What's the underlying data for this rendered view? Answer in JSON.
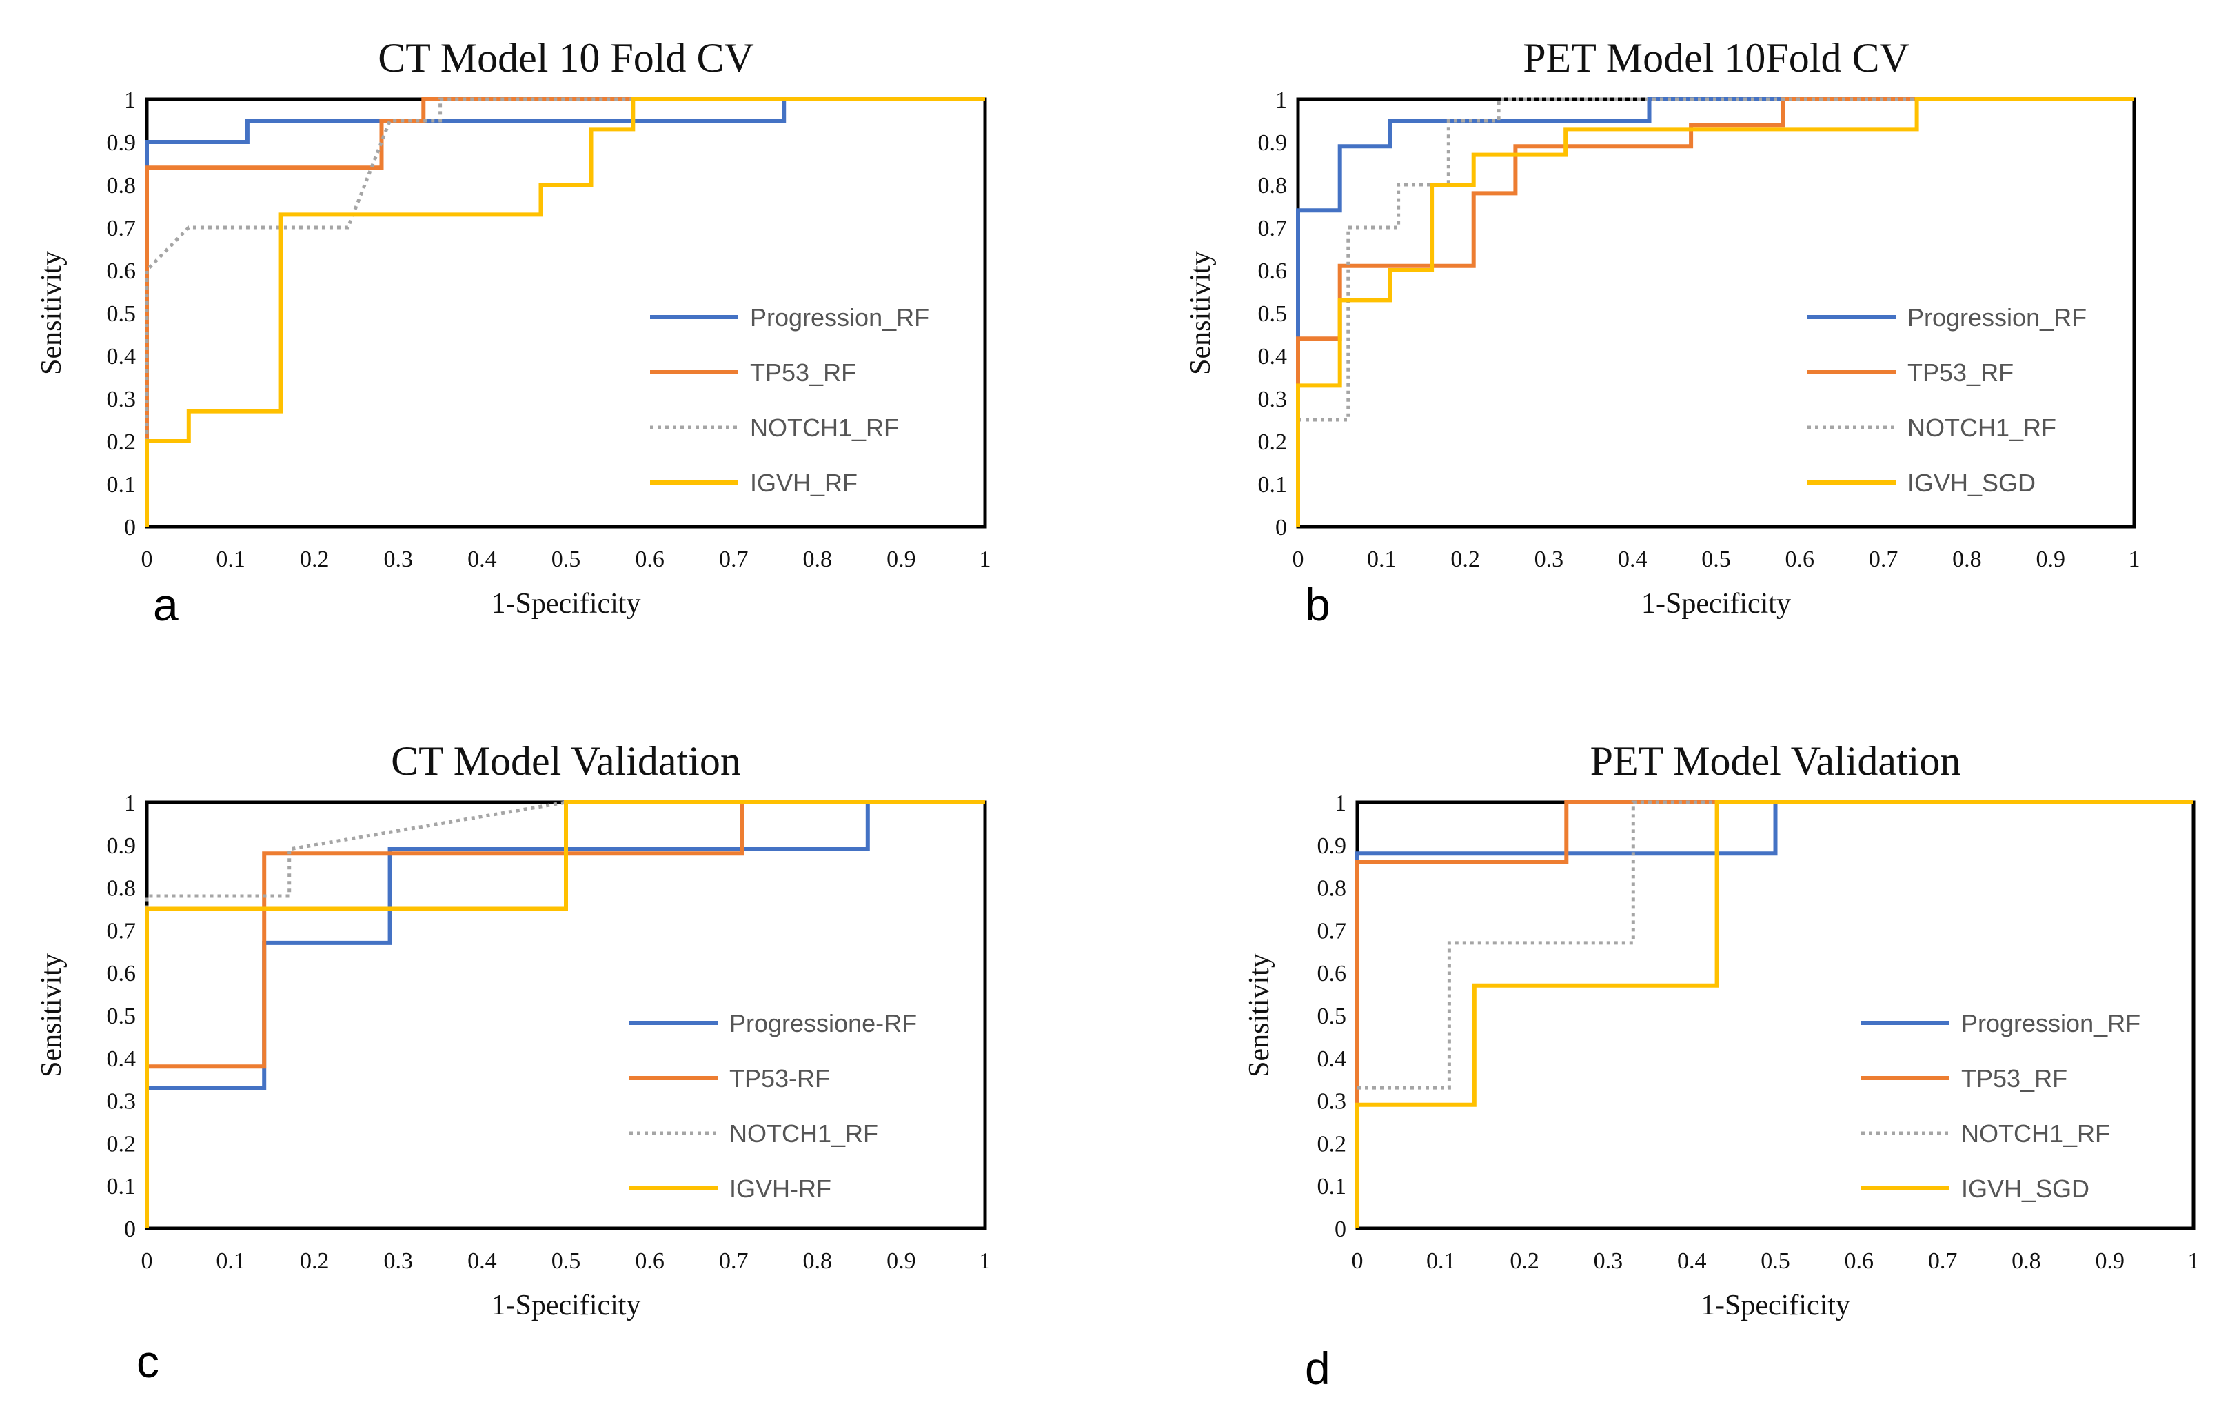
{
  "chart_data": [
    {
      "panel_label": "a",
      "type": "line",
      "title": "CT Model 10 Fold CV",
      "xlabel": "1-Specificity",
      "ylabel": "Sensitivity",
      "xlim": [
        0,
        1
      ],
      "ylim": [
        0,
        1
      ],
      "xticks": [
        "0",
        "0.1",
        "0.2",
        "0.3",
        "0.4",
        "0.5",
        "0.6",
        "0.7",
        "0.8",
        "0.9",
        "1"
      ],
      "yticks": [
        "0",
        "0.1",
        "0.2",
        "0.3",
        "0.4",
        "0.5",
        "0.6",
        "0.7",
        "0.8",
        "0.9",
        "1"
      ],
      "grid": false,
      "legend": "right",
      "series": [
        {
          "name": "Progression_RF",
          "color": "#4472C4",
          "style": "solid",
          "points": [
            [
              0,
              0.84
            ],
            [
              0,
              0.9
            ],
            [
              0.12,
              0.9
            ],
            [
              0.12,
              0.95
            ],
            [
              0.76,
              0.95
            ],
            [
              0.76,
              1
            ],
            [
              1,
              1
            ]
          ]
        },
        {
          "name": "TP53_RF",
          "color": "#ED7D31",
          "style": "solid",
          "points": [
            [
              0,
              0
            ],
            [
              0,
              0.84
            ],
            [
              0.28,
              0.84
            ],
            [
              0.28,
              0.95
            ],
            [
              0.33,
              0.95
            ],
            [
              0.33,
              1
            ],
            [
              1,
              1
            ]
          ]
        },
        {
          "name": "NOTCH1_RF",
          "color": "#A5A5A5",
          "style": "dotted",
          "points": [
            [
              0,
              0.2
            ],
            [
              0,
              0.6
            ],
            [
              0.05,
              0.7
            ],
            [
              0.24,
              0.7
            ],
            [
              0.29,
              0.95
            ],
            [
              0.35,
              0.95
            ],
            [
              0.35,
              1
            ],
            [
              1,
              1
            ]
          ]
        },
        {
          "name": "IGVH_RF",
          "color": "#FFC000",
          "style": "solid",
          "points": [
            [
              0,
              0
            ],
            [
              0,
              0.2
            ],
            [
              0.05,
              0.2
            ],
            [
              0.05,
              0.27
            ],
            [
              0.16,
              0.27
            ],
            [
              0.16,
              0.73
            ],
            [
              0.47,
              0.73
            ],
            [
              0.47,
              0.8
            ],
            [
              0.53,
              0.8
            ],
            [
              0.53,
              0.93
            ],
            [
              0.58,
              0.93
            ],
            [
              0.58,
              1
            ],
            [
              1,
              1
            ]
          ]
        }
      ]
    },
    {
      "panel_label": "b",
      "type": "line",
      "title": "PET Model 10Fold CV",
      "xlabel": "1-Specificity",
      "ylabel": "Sensitivity",
      "xlim": [
        0,
        1
      ],
      "ylim": [
        0,
        1
      ],
      "xticks": [
        "0",
        "0.1",
        "0.2",
        "0.3",
        "0.4",
        "0.5",
        "0.6",
        "0.7",
        "0.8",
        "0.9",
        "1"
      ],
      "yticks": [
        "0",
        "0.1",
        "0.2",
        "0.3",
        "0.4",
        "0.5",
        "0.6",
        "0.7",
        "0.8",
        "0.9",
        "1"
      ],
      "grid": false,
      "legend": "right",
      "series": [
        {
          "name": "Progression_RF",
          "color": "#4472C4",
          "style": "solid",
          "points": [
            [
              0,
              0.44
            ],
            [
              0,
              0.74
            ],
            [
              0.05,
              0.74
            ],
            [
              0.05,
              0.89
            ],
            [
              0.11,
              0.89
            ],
            [
              0.11,
              0.95
            ],
            [
              0.42,
              0.95
            ],
            [
              0.42,
              1
            ],
            [
              1,
              1
            ]
          ]
        },
        {
          "name": "TP53_RF",
          "color": "#ED7D31",
          "style": "solid",
          "points": [
            [
              0,
              0.33
            ],
            [
              0,
              0.44
            ],
            [
              0.05,
              0.44
            ],
            [
              0.05,
              0.61
            ],
            [
              0.21,
              0.61
            ],
            [
              0.21,
              0.78
            ],
            [
              0.26,
              0.78
            ],
            [
              0.26,
              0.89
            ],
            [
              0.47,
              0.89
            ],
            [
              0.47,
              0.94
            ],
            [
              0.58,
              0.94
            ],
            [
              0.58,
              1
            ],
            [
              1,
              1
            ]
          ]
        },
        {
          "name": "NOTCH1_RF",
          "color": "#A5A5A5",
          "style": "dotted",
          "points": [
            [
              0,
              0.25
            ],
            [
              0.06,
              0.25
            ],
            [
              0.06,
              0.7
            ],
            [
              0.12,
              0.7
            ],
            [
              0.12,
              0.8
            ],
            [
              0.18,
              0.8
            ],
            [
              0.18,
              0.95
            ],
            [
              0.24,
              0.95
            ],
            [
              0.24,
              1
            ],
            [
              1,
              1
            ]
          ]
        },
        {
          "name": "IGVH_SGD",
          "color": "#FFC000",
          "style": "solid",
          "points": [
            [
              0,
              0
            ],
            [
              0,
              0.33
            ],
            [
              0.05,
              0.33
            ],
            [
              0.05,
              0.53
            ],
            [
              0.11,
              0.53
            ],
            [
              0.11,
              0.6
            ],
            [
              0.16,
              0.6
            ],
            [
              0.16,
              0.8
            ],
            [
              0.21,
              0.8
            ],
            [
              0.21,
              0.87
            ],
            [
              0.32,
              0.87
            ],
            [
              0.32,
              0.93
            ],
            [
              0.74,
              0.93
            ],
            [
              0.74,
              1
            ],
            [
              1,
              1
            ]
          ]
        }
      ]
    },
    {
      "panel_label": "c",
      "type": "line",
      "title": "CT Model Validation",
      "xlabel": "1-Specificity",
      "ylabel": "Sensitivity",
      "xlim": [
        0,
        1
      ],
      "ylim": [
        0,
        1
      ],
      "xticks": [
        "0",
        "0.1",
        "0.2",
        "0.3",
        "0.4",
        "0.5",
        "0.6",
        "0.7",
        "0.8",
        "0.9",
        "1"
      ],
      "yticks": [
        "0",
        "0.1",
        "0.2",
        "0.3",
        "0.4",
        "0.5",
        "0.6",
        "0.7",
        "0.8",
        "0.9",
        "1"
      ],
      "grid": false,
      "legend": "right",
      "series": [
        {
          "name": "Progressione-RF",
          "color": "#4472C4",
          "style": "solid",
          "points": [
            [
              0,
              0
            ],
            [
              0,
              0.33
            ],
            [
              0.14,
              0.33
            ],
            [
              0.14,
              0.67
            ],
            [
              0.29,
              0.67
            ],
            [
              0.29,
              0.89
            ],
            [
              0.86,
              0.89
            ],
            [
              0.86,
              1
            ],
            [
              1,
              1
            ]
          ]
        },
        {
          "name": "TP53-RF",
          "color": "#ED7D31",
          "style": "solid",
          "points": [
            [
              0,
              0.33
            ],
            [
              0,
              0.38
            ],
            [
              0.14,
              0.38
            ],
            [
              0.14,
              0.88
            ],
            [
              0.71,
              0.88
            ],
            [
              0.71,
              1
            ],
            [
              1,
              1
            ]
          ]
        },
        {
          "name": "NOTCH1_RF",
          "color": "#A5A5A5",
          "style": "dotted",
          "points": [
            [
              0,
              0.75
            ],
            [
              0,
              0.78
            ],
            [
              0.17,
              0.78
            ],
            [
              0.17,
              0.89
            ],
            [
              0.5,
              1
            ],
            [
              1,
              1
            ]
          ]
        },
        {
          "name": "IGVH-RF",
          "color": "#FFC000",
          "style": "solid",
          "points": [
            [
              0,
              0
            ],
            [
              0,
              0.75
            ],
            [
              0.5,
              0.75
            ],
            [
              0.5,
              1
            ],
            [
              1,
              1
            ]
          ]
        }
      ]
    },
    {
      "panel_label": "d",
      "type": "line",
      "title": "PET  Model Validation",
      "xlabel": "1-Specificity",
      "ylabel": "Sensitivity",
      "xlim": [
        0,
        1
      ],
      "ylim": [
        0,
        1
      ],
      "xticks": [
        "0",
        "0.1",
        "0.2",
        "0.3",
        "0.4",
        "0.5",
        "0.6",
        "0.7",
        "0.8",
        "0.9",
        "1"
      ],
      "yticks": [
        "0",
        "0.1",
        "0.2",
        "0.3",
        "0.4",
        "0.5",
        "0.6",
        "0.7",
        "0.8",
        "0.9",
        "1"
      ],
      "grid": false,
      "legend": "right",
      "series": [
        {
          "name": "Progression_RF",
          "color": "#4472C4",
          "style": "solid",
          "points": [
            [
              0,
              0.86
            ],
            [
              0,
              0.88
            ],
            [
              0.5,
              0.88
            ],
            [
              0.5,
              1
            ],
            [
              1,
              1
            ]
          ]
        },
        {
          "name": "TP53_RF",
          "color": "#ED7D31",
          "style": "solid",
          "points": [
            [
              0,
              0
            ],
            [
              0,
              0.86
            ],
            [
              0.25,
              0.86
            ],
            [
              0.25,
              1
            ],
            [
              1,
              1
            ]
          ]
        },
        {
          "name": "NOTCH1_RF",
          "color": "#A5A5A5",
          "style": "dotted",
          "points": [
            [
              0,
              0.33
            ],
            [
              0.11,
              0.33
            ],
            [
              0.11,
              0.67
            ],
            [
              0.33,
              0.67
            ],
            [
              0.33,
              1
            ],
            [
              1,
              1
            ]
          ]
        },
        {
          "name": "IGVH_SGD",
          "color": "#FFC000",
          "style": "solid",
          "points": [
            [
              0,
              0
            ],
            [
              0,
              0.29
            ],
            [
              0.14,
              0.29
            ],
            [
              0.14,
              0.57
            ],
            [
              0.43,
              0.57
            ],
            [
              0.43,
              1
            ],
            [
              1,
              1
            ]
          ]
        }
      ]
    }
  ]
}
